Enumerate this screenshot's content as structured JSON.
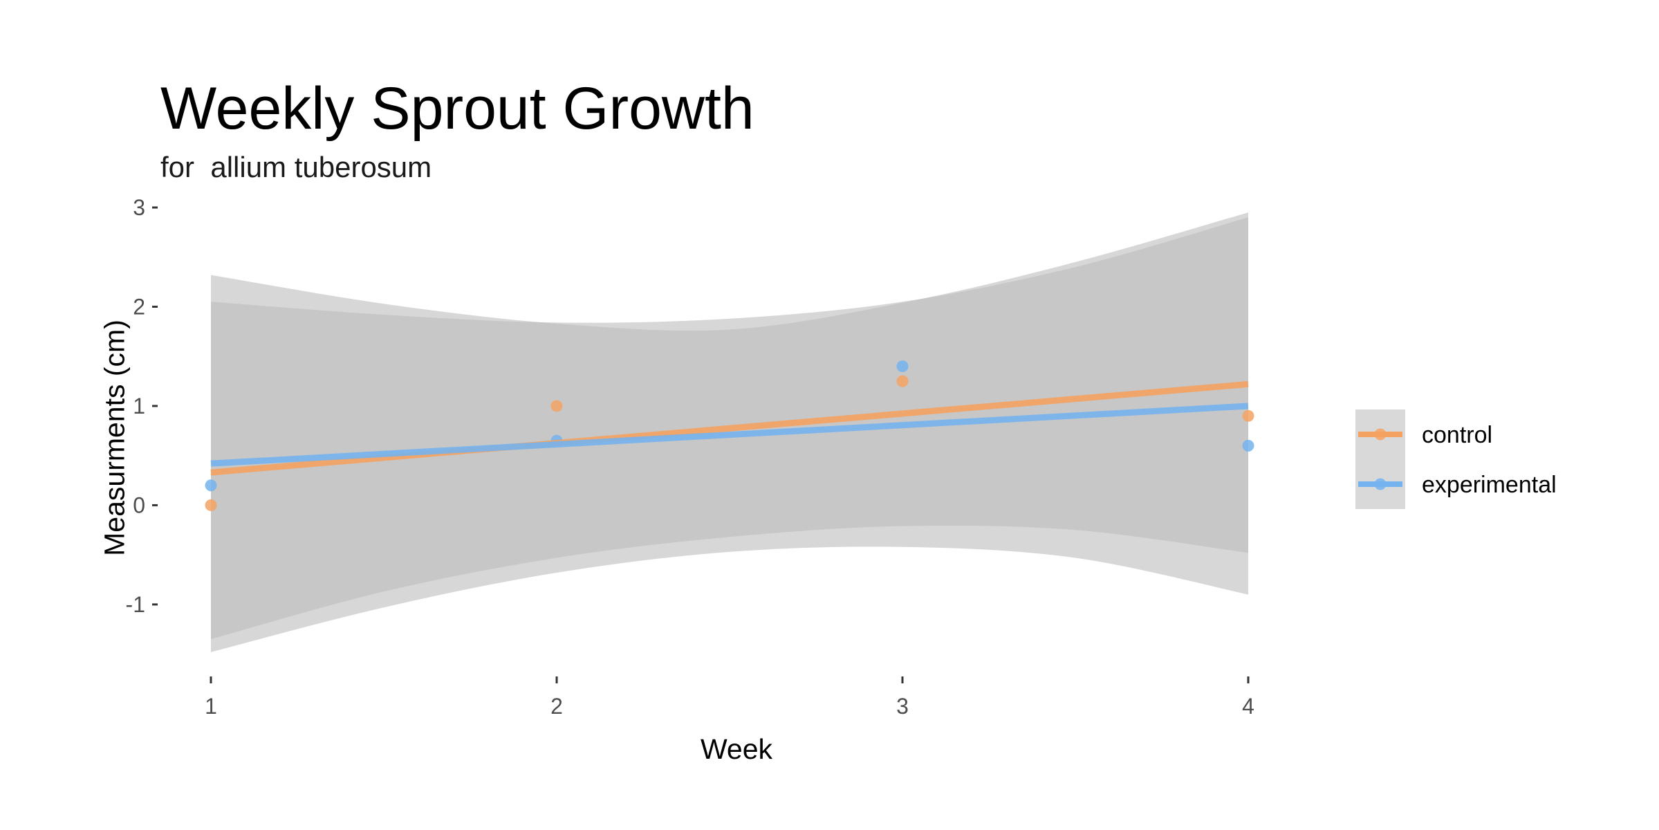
{
  "chart_data": {
    "type": "scatter",
    "title": "Weekly Sprout Growth",
    "subtitle": "for  allium tuberosum",
    "xlabel": "Week",
    "ylabel": "Measurments (cm)",
    "xlim": [
      0.85,
      4.15
    ],
    "ylim": [
      -1.6,
      3.0
    ],
    "x_ticks": [
      1,
      2,
      3,
      4
    ],
    "y_ticks": [
      -1,
      0,
      1,
      2,
      3
    ],
    "grid": false,
    "legend_position": "right",
    "series": [
      {
        "name": "control",
        "color": "#F4A261",
        "points": [
          {
            "x": 1,
            "y": 0.0
          },
          {
            "x": 2,
            "y": 1.0
          },
          {
            "x": 3,
            "y": 1.25
          },
          {
            "x": 4,
            "y": 0.9
          }
        ],
        "fit_line": [
          {
            "x": 1,
            "y": 0.33
          },
          {
            "x": 4,
            "y": 1.22
          }
        ],
        "confidence_band": [
          {
            "x": 1,
            "lower": -1.35,
            "upper": 2.05
          },
          {
            "x": 1.5,
            "lower": -0.87,
            "upper": 1.92
          },
          {
            "x": 2,
            "lower": -0.53,
            "upper": 1.84
          },
          {
            "x": 2.5,
            "lower": -0.32,
            "upper": 1.88
          },
          {
            "x": 3,
            "lower": -0.21,
            "upper": 2.05
          },
          {
            "x": 3.5,
            "lower": -0.25,
            "upper": 2.4
          },
          {
            "x": 4,
            "lower": -0.48,
            "upper": 2.9
          }
        ]
      },
      {
        "name": "experimental",
        "color": "#74B3EE",
        "points": [
          {
            "x": 1,
            "y": 0.2
          },
          {
            "x": 2,
            "y": 0.65
          },
          {
            "x": 3,
            "y": 1.4
          },
          {
            "x": 4,
            "y": 0.6
          }
        ],
        "fit_line": [
          {
            "x": 1,
            "y": 0.42
          },
          {
            "x": 4,
            "y": 1.0
          }
        ],
        "confidence_band": [
          {
            "x": 1,
            "lower": -1.48,
            "upper": 2.32
          },
          {
            "x": 1.5,
            "lower": -1.03,
            "upper": 2.03
          },
          {
            "x": 2,
            "lower": -0.68,
            "upper": 1.83
          },
          {
            "x": 2.5,
            "lower": -0.47,
            "upper": 1.77
          },
          {
            "x": 3,
            "lower": -0.42,
            "upper": 2.04
          },
          {
            "x": 3.5,
            "lower": -0.53,
            "upper": 2.45
          },
          {
            "x": 4,
            "lower": -0.9,
            "upper": 2.95
          }
        ]
      }
    ],
    "band_color": "#bdbdbd"
  }
}
